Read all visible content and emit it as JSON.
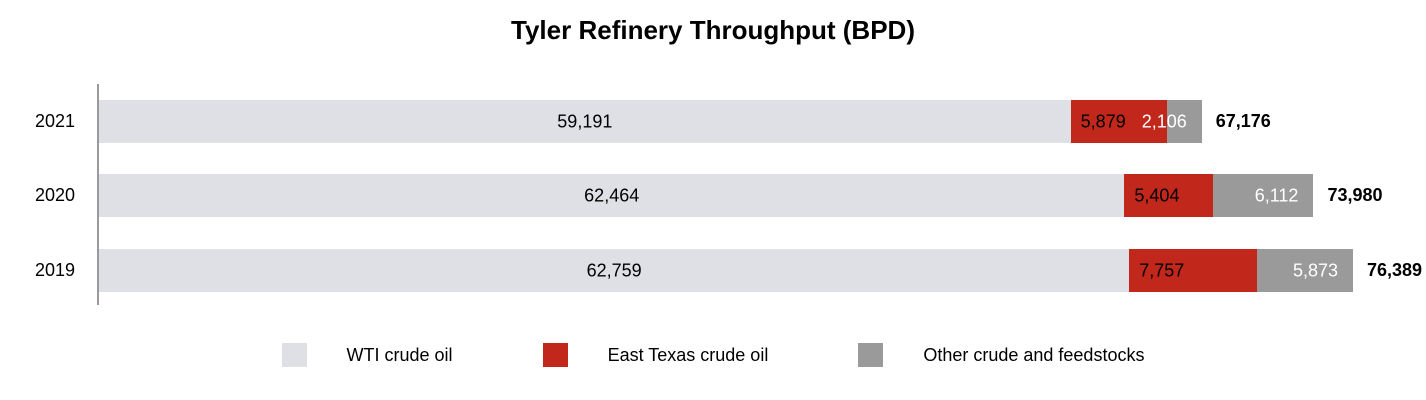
{
  "title": "Tyler Refinery Throughput (BPD)",
  "colors": {
    "wti": "#dfe0e5",
    "east_texas": "#c2271c",
    "other": "#9a9a9a",
    "axis": "#9a9a9a",
    "text": "#000000",
    "label_on_dark": "#ffffff"
  },
  "chart_data": {
    "type": "bar",
    "orientation": "horizontal",
    "stacked": true,
    "title": "Tyler Refinery Throughput (BPD)",
    "categories": [
      "2021",
      "2020",
      "2019"
    ],
    "series": [
      {
        "name": "WTI crude oil",
        "color_key": "wti",
        "values": [
          59191,
          62464,
          62759
        ],
        "labels": [
          "59,191",
          "62,464",
          "62,759"
        ],
        "label_style": "center-black"
      },
      {
        "name": "East Texas crude oil",
        "color_key": "east_texas",
        "values": [
          5879,
          5404,
          7757
        ],
        "labels": [
          "5,879",
          "5,404",
          "7,757"
        ],
        "label_style": "left-black"
      },
      {
        "name": "Other crude and feedstocks",
        "color_key": "other",
        "values": [
          2106,
          6112,
          5873
        ],
        "labels": [
          "2,106",
          "6,112",
          "5,873"
        ],
        "label_style": "right-white"
      }
    ],
    "totals": [
      67176,
      73980,
      76389
    ],
    "total_labels": [
      "67,176",
      "73,980",
      "76,389"
    ],
    "x_max": 76389,
    "grid": false,
    "legend_position": "bottom-center"
  },
  "legend": {
    "items": [
      {
        "label": "WTI crude oil",
        "color_key": "wti"
      },
      {
        "label": "East Texas crude oil",
        "color_key": "east_texas"
      },
      {
        "label": "Other crude and feedstocks",
        "color_key": "other"
      }
    ]
  }
}
